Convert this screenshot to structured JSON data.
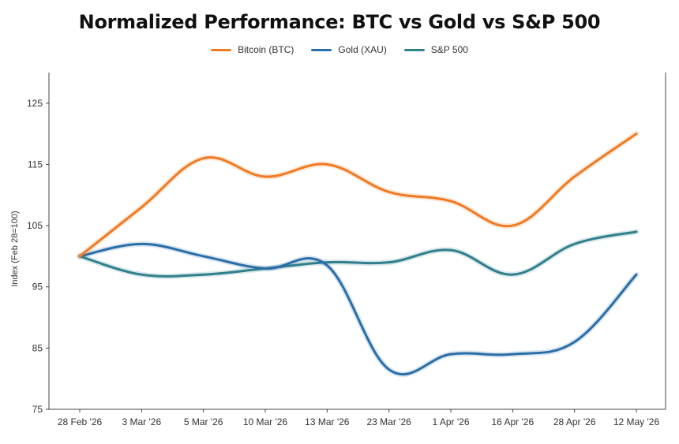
{
  "chart_data": {
    "type": "line",
    "title": "Normalized Performance: BTC vs Gold vs S&P 500",
    "xlabel": "",
    "ylabel": "Index (Feb 28=100)",
    "ylim": [
      75,
      130
    ],
    "yticks": [
      75,
      85,
      95,
      105,
      115,
      125
    ],
    "grid": false,
    "legend_position": "top-center",
    "categories": [
      "28 Feb '26",
      "3 Mar '26",
      "5 Mar '26",
      "10 Mar '26",
      "13 Mar '26",
      "23 Mar '26",
      "1 Apr '26",
      "16 Apr '26",
      "28 Apr '26",
      "12 May '26"
    ],
    "series": [
      {
        "name": "Bitcoin (BTC)",
        "color": "#f07a22",
        "values": [
          100,
          108,
          116,
          113,
          115,
          110.5,
          109,
          105,
          113,
          120
        ]
      },
      {
        "name": "Gold (XAU)",
        "color": "#2a6ea8",
        "values": [
          100,
          102,
          100,
          98,
          98.5,
          81.5,
          84,
          84,
          86,
          97
        ]
      },
      {
        "name": "S&P 500",
        "color": "#2f7f8c",
        "values": [
          100,
          97,
          97,
          98,
          99,
          99,
          101,
          97,
          102,
          104
        ]
      }
    ]
  }
}
